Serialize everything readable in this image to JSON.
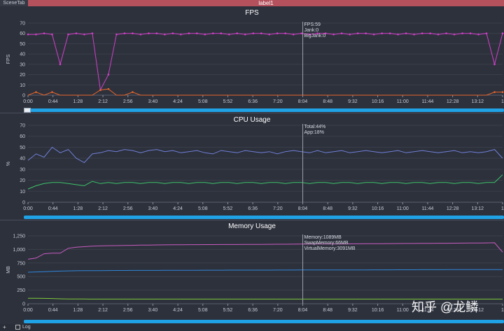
{
  "tabs": {
    "scene": "SceneTab",
    "label": "label1"
  },
  "bottom": {
    "plus": "+",
    "log_label": "Log"
  },
  "watermark": "知乎 @龙鳞",
  "colors": {
    "fps": "#d040c8",
    "jank": "#e8652a",
    "total": "#6f7fd6",
    "app": "#3ec46a",
    "memory": "#c85cc0",
    "swap": "#2f86d8",
    "virtual": "#7ecb3a",
    "cursor": "#9aa0aa",
    "grid": "#3a3f4a",
    "scroll": "#1fa2e6"
  },
  "chart_data": [
    {
      "type": "line",
      "title": "FPS",
      "ylabel": "FPS",
      "ylim": [
        0,
        70
      ],
      "yticks": [
        0,
        10,
        20,
        30,
        40,
        50,
        60,
        70
      ],
      "xticks": [
        "0:00",
        "0:44",
        "1:28",
        "2:12",
        "2:56",
        "3:40",
        "4:24",
        "5:08",
        "5:52",
        "6:36",
        "7:20",
        "8:04",
        "8:48",
        "9:32",
        "10:16",
        "11:00",
        "11:44",
        "12:28",
        "13:12",
        "1"
      ],
      "cursor": {
        "x": "8:04",
        "labels": [
          "FPS:59",
          "Jank:0",
          "BigJank:0"
        ]
      },
      "series": [
        {
          "name": "FPS",
          "values": [
            59,
            59,
            60,
            59,
            30,
            59,
            60,
            59,
            60,
            5,
            20,
            59,
            60,
            60,
            59,
            60,
            60,
            59,
            60,
            59,
            60,
            60,
            59,
            60,
            60,
            59,
            60,
            59,
            60,
            60,
            59,
            60,
            60,
            59,
            60,
            59,
            60,
            60,
            59,
            60,
            59,
            60,
            60,
            59,
            60,
            60,
            59,
            60,
            59,
            60,
            60,
            59,
            60,
            59,
            60,
            60,
            59,
            60,
            30,
            60
          ]
        },
        {
          "name": "Jank",
          "values": [
            0,
            3,
            0,
            3,
            0,
            0,
            0,
            0,
            0,
            5,
            6,
            0,
            0,
            3,
            0,
            0,
            0,
            0,
            0,
            0,
            0,
            0,
            0,
            0,
            0,
            0,
            0,
            0,
            0,
            0,
            0,
            0,
            0,
            0,
            0,
            0,
            0,
            0,
            0,
            0,
            0,
            0,
            0,
            0,
            0,
            0,
            0,
            0,
            0,
            0,
            0,
            0,
            0,
            0,
            0,
            0,
            0,
            0,
            3,
            3
          ]
        }
      ]
    },
    {
      "type": "line",
      "title": "CPU Usage",
      "ylabel": "%",
      "ylim": [
        0,
        70
      ],
      "yticks": [
        0,
        10,
        20,
        30,
        40,
        50,
        60,
        70
      ],
      "xticks": [
        "0:00",
        "0:44",
        "1:28",
        "2:12",
        "2:56",
        "3:40",
        "4:24",
        "5:08",
        "5:52",
        "6:36",
        "7:20",
        "8:04",
        "8:48",
        "9:32",
        "10:16",
        "11:00",
        "11:44",
        "12:28",
        "13:12",
        "1"
      ],
      "cursor": {
        "x": "8:04",
        "labels": [
          "Total:44%",
          "App:18%"
        ]
      },
      "series": [
        {
          "name": "Total",
          "values": [
            38,
            44,
            41,
            50,
            45,
            48,
            40,
            36,
            44,
            45,
            47,
            46,
            48,
            47,
            45,
            47,
            48,
            46,
            47,
            45,
            46,
            47,
            45,
            44,
            47,
            46,
            45,
            47,
            46,
            45,
            46,
            44,
            46,
            47,
            46,
            45,
            47,
            45,
            46,
            47,
            45,
            46,
            47,
            46,
            45,
            46,
            47,
            45,
            46,
            47,
            46,
            45,
            46,
            47,
            45,
            46,
            45,
            46,
            48,
            40
          ]
        },
        {
          "name": "App",
          "values": [
            12,
            15,
            17,
            18,
            18,
            17,
            16,
            15,
            19,
            17,
            18,
            17,
            18,
            18,
            17,
            18,
            18,
            17,
            18,
            18,
            17,
            18,
            18,
            17,
            18,
            18,
            17,
            18,
            18,
            17,
            18,
            18,
            17,
            18,
            18,
            17,
            18,
            18,
            17,
            18,
            18,
            17,
            18,
            18,
            17,
            18,
            18,
            17,
            18,
            18,
            17,
            18,
            18,
            17,
            18,
            18,
            17,
            18,
            18,
            25
          ]
        }
      ]
    },
    {
      "type": "line",
      "title": "Memory Usage",
      "ylabel": "MB",
      "ylim": [
        0,
        1250
      ],
      "yticks": [
        0,
        250,
        500,
        750,
        1000,
        1250
      ],
      "ytick_labels": [
        "0",
        "250",
        "500",
        "750",
        "1,000",
        "1,250"
      ],
      "xticks": [
        "0:00",
        "0:44",
        "1:28",
        "2:12",
        "2:56",
        "3:40",
        "4:24",
        "5:08",
        "5:52",
        "6:36",
        "7:20",
        "8:04",
        "8:48",
        "9:32",
        "10:16",
        "11:00",
        "11:44",
        "12:28",
        "13:12",
        "1"
      ],
      "cursor": {
        "x": "8:04",
        "labels": [
          "Memory:1089MB",
          "SwapMemory:66MB",
          "VirtualMemory:3091MB"
        ]
      },
      "series": [
        {
          "name": "Memory",
          "values": [
            820,
            840,
            920,
            930,
            930,
            1020,
            1040,
            1050,
            1060,
            1065,
            1068,
            1070,
            1072,
            1075,
            1078,
            1080,
            1082,
            1084,
            1085,
            1086,
            1087,
            1088,
            1089,
            1089,
            1090,
            1090,
            1090,
            1091,
            1092,
            1093,
            1094,
            1095,
            1096,
            1097,
            1098,
            1099,
            1100,
            1100,
            1100,
            1101,
            1102,
            1103,
            1104,
            1105,
            1106,
            1107,
            1108,
            1109,
            1110,
            1111,
            1112,
            1113,
            1114,
            1115,
            1116,
            1117,
            1118,
            1120,
            1122,
            950
          ]
        },
        {
          "name": "SwapMemory",
          "values": [
            580,
            585,
            590,
            595,
            600,
            605,
            607,
            608,
            609,
            610,
            611,
            612,
            612,
            613,
            613,
            614,
            614,
            615,
            615,
            615,
            616,
            616,
            617,
            617,
            617,
            618,
            618,
            618,
            619,
            619,
            619,
            620,
            620,
            620,
            621,
            621,
            621,
            622,
            622,
            622,
            623,
            623,
            623,
            624,
            624,
            624,
            625,
            625,
            625,
            626,
            626,
            626,
            627,
            627,
            627,
            628,
            628,
            628,
            629,
            629
          ]
        },
        {
          "name": "VirtualMemory",
          "values": [
            100,
            100,
            98,
            96,
            90,
            88,
            86,
            86,
            85,
            85,
            85,
            85,
            85,
            85,
            85,
            85,
            85,
            85,
            85,
            85,
            85,
            85,
            85,
            85,
            85,
            85,
            85,
            85,
            85,
            85,
            85,
            85,
            85,
            85,
            85,
            85,
            85,
            85,
            85,
            85,
            85,
            85,
            85,
            85,
            85,
            85,
            85,
            85,
            85,
            85,
            85,
            85,
            85,
            85,
            85,
            85,
            85,
            85,
            85,
            85
          ]
        }
      ]
    }
  ]
}
